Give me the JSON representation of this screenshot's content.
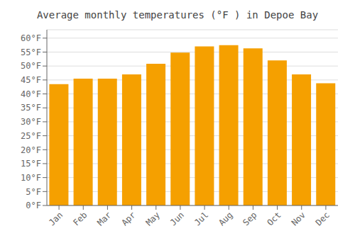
{
  "chart_data": {
    "type": "bar",
    "title": "Average monthly temperatures (°F ) in Depoe Bay",
    "categories": [
      "Jan",
      "Feb",
      "Mar",
      "Apr",
      "May",
      "Jun",
      "Jul",
      "Aug",
      "Sep",
      "Oct",
      "Nov",
      "Dec"
    ],
    "values": [
      43.5,
      45.5,
      45.5,
      47.0,
      50.8,
      54.8,
      57.0,
      57.5,
      56.3,
      52.0,
      47.0,
      43.8
    ],
    "color": "#F5A000",
    "ylim": [
      0,
      63
    ],
    "yticks": [
      {
        "value": 0,
        "label": "0°F"
      },
      {
        "value": 5,
        "label": "5°F"
      },
      {
        "value": 10,
        "label": "10°F"
      },
      {
        "value": 15,
        "label": "15°F"
      },
      {
        "value": 20,
        "label": "20°F"
      },
      {
        "value": 25,
        "label": "25°F"
      },
      {
        "value": 30,
        "label": "30°F"
      },
      {
        "value": 35,
        "label": "35°F"
      },
      {
        "value": 40,
        "label": "40°F"
      },
      {
        "value": 45,
        "label": "45°F"
      },
      {
        "value": 50,
        "label": "50°F"
      },
      {
        "value": 55,
        "label": "55°F"
      },
      {
        "value": 60,
        "label": "60°F"
      }
    ],
    "grid": true
  }
}
